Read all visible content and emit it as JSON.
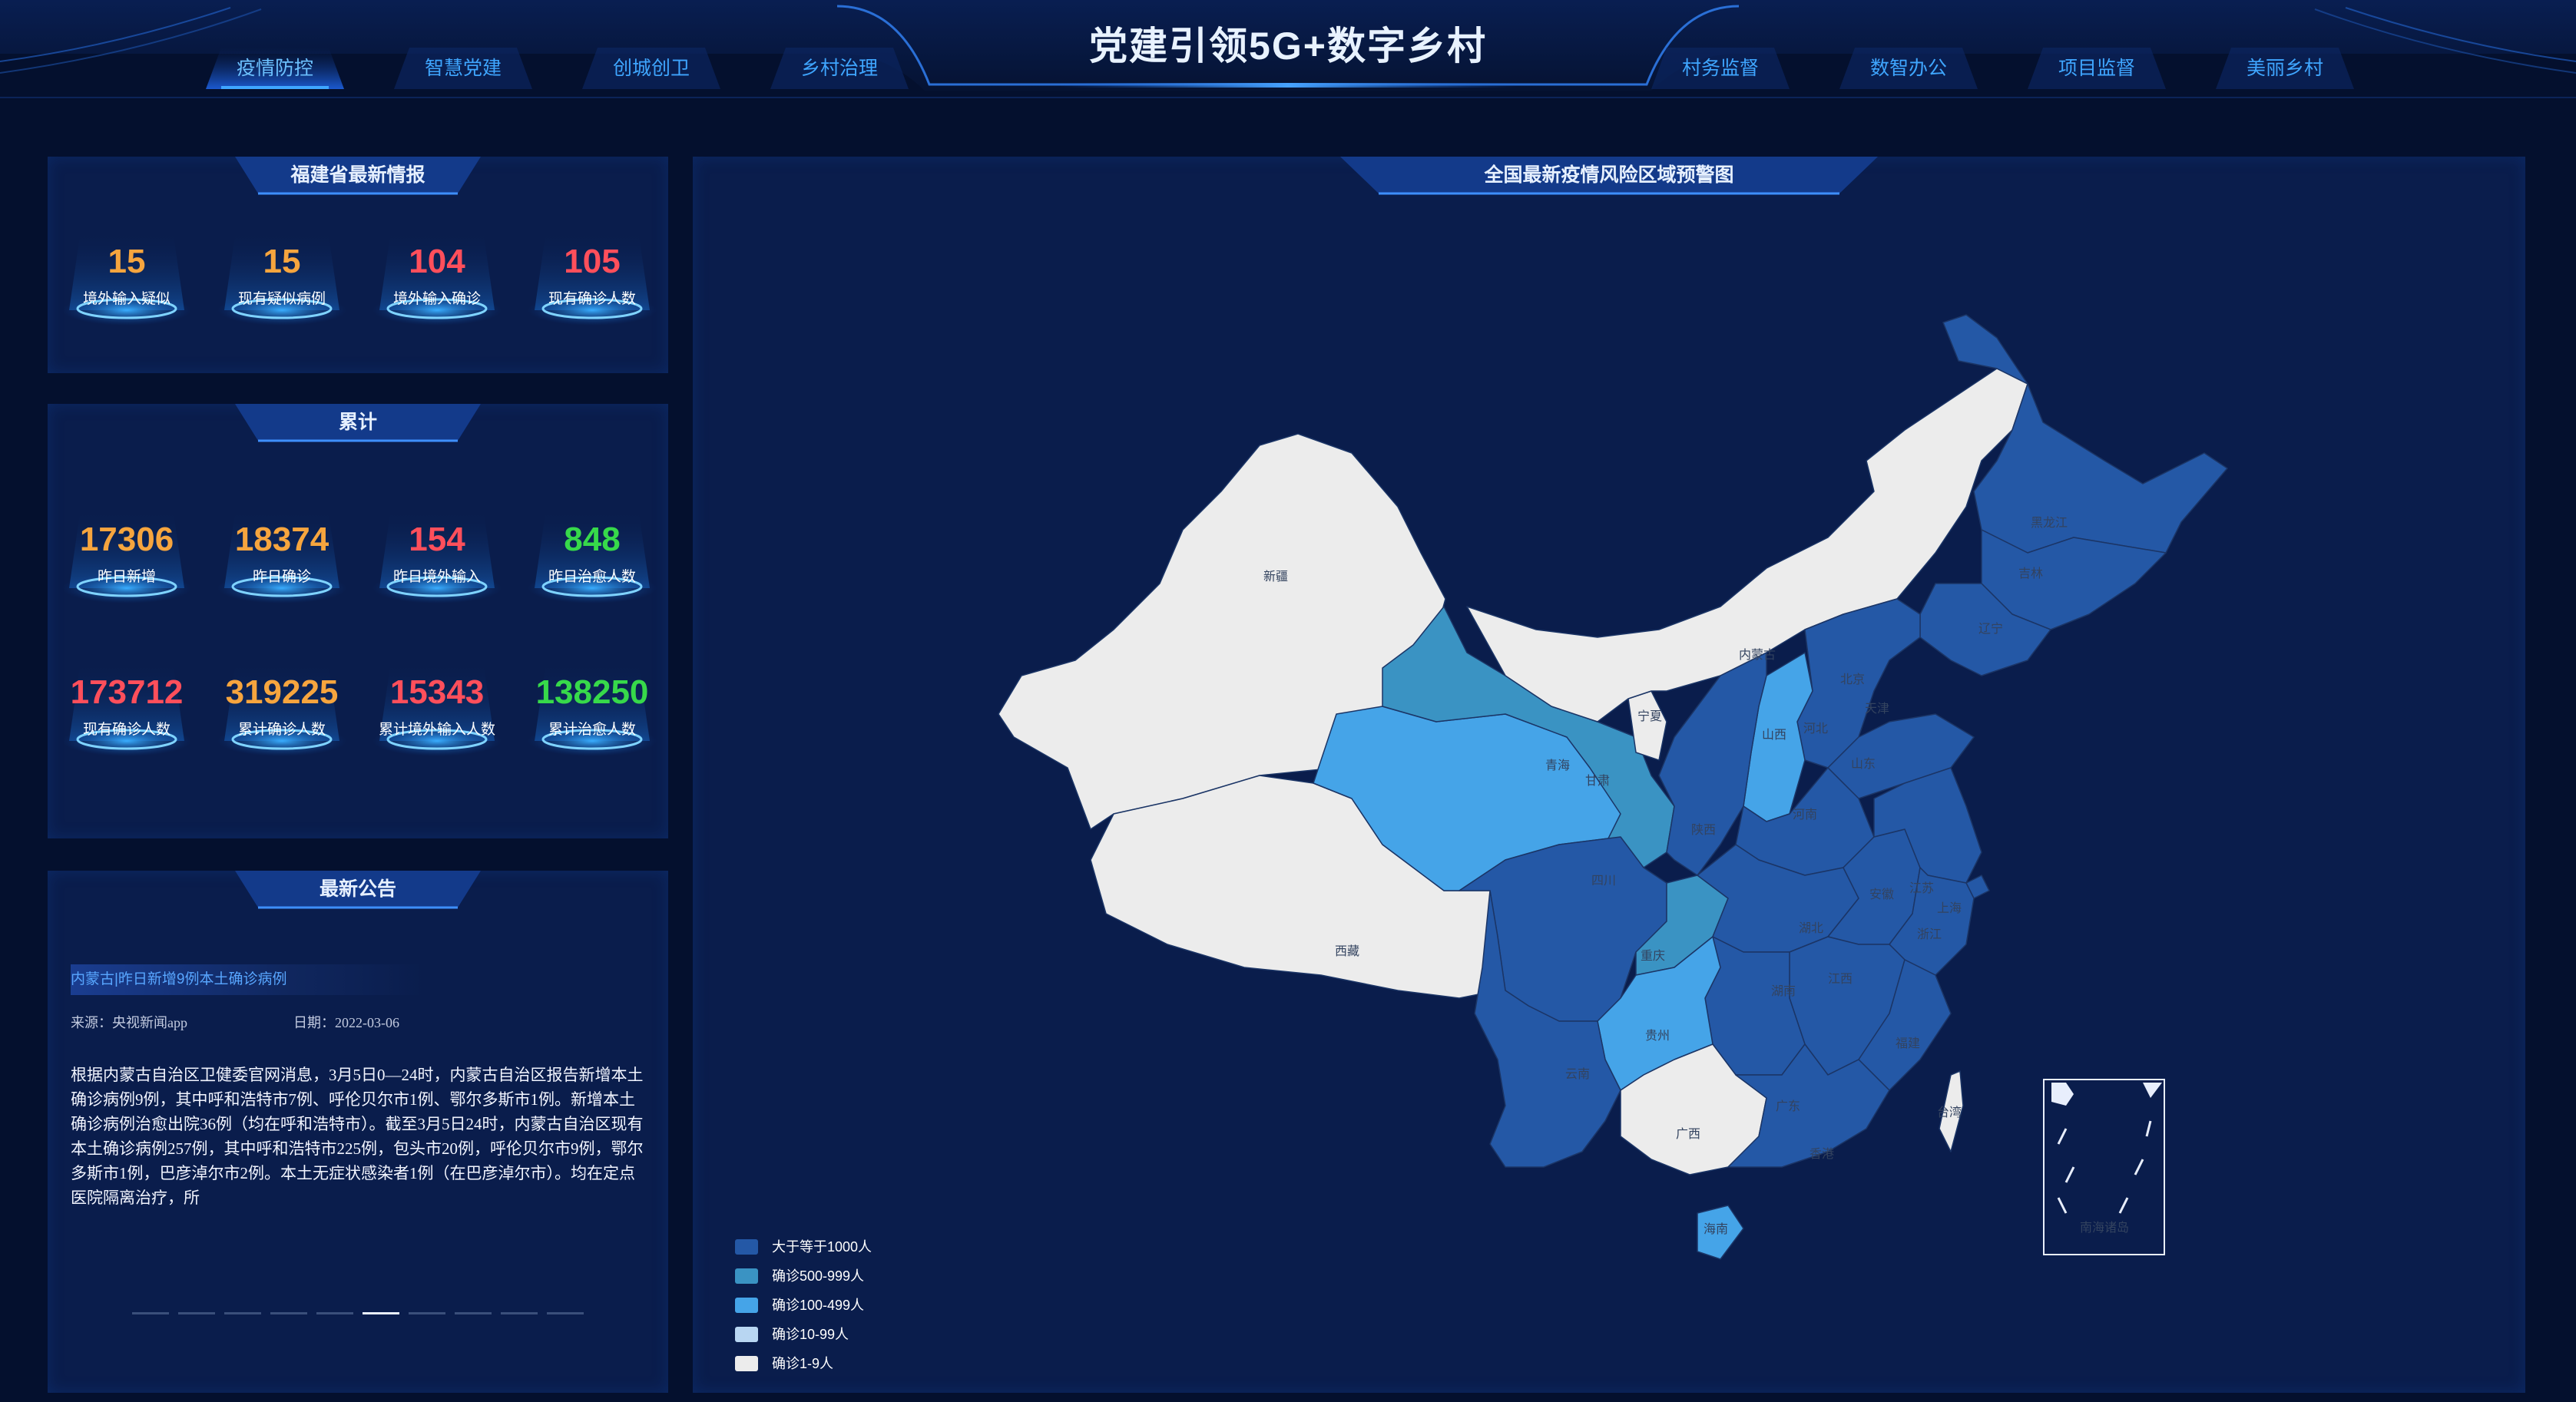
{
  "header": {
    "title": "党建引领5G+数字乡村",
    "nav_left": [
      "疫情防控",
      "智慧党建",
      "创城创卫",
      "乡村治理"
    ],
    "nav_right": [
      "村务监督",
      "数智办公",
      "项目监督",
      "美丽乡村"
    ],
    "active_tab": "疫情防控"
  },
  "latest_info": {
    "title": "福建省最新情报",
    "stats": [
      {
        "value": "15",
        "label": "境外输入疑似",
        "color": "#f6a53e"
      },
      {
        "value": "15",
        "label": "现有疑似病例",
        "color": "#f6a53e"
      },
      {
        "value": "104",
        "label": "境外输入确诊",
        "color": "#ff4f5b"
      },
      {
        "value": "105",
        "label": "现有确诊人数",
        "color": "#ff4f5b"
      }
    ]
  },
  "cumulative": {
    "title": "累计",
    "row1": [
      {
        "value": "17306",
        "label": "昨日新增",
        "color": "#f6a53e"
      },
      {
        "value": "18374",
        "label": "昨日确诊",
        "color": "#f6a53e"
      },
      {
        "value": "154",
        "label": "昨日境外输入",
        "color": "#ff4f5b"
      },
      {
        "value": "848",
        "label": "昨日治愈人数",
        "color": "#37d94a"
      }
    ],
    "row2": [
      {
        "value": "173712",
        "label": "现有确诊人数",
        "color": "#ff4f5b"
      },
      {
        "value": "319225",
        "label": "累计确诊人数",
        "color": "#f6a53e"
      },
      {
        "value": "15343",
        "label": "累计境外输入人数",
        "color": "#ff4f5b"
      },
      {
        "value": "138250",
        "label": "累计治愈人数",
        "color": "#37d94a"
      }
    ]
  },
  "announcement": {
    "title": "最新公告",
    "headline": "内蒙古|昨日新增9例本土确诊病例",
    "source": "来源：央视新闻app",
    "date": "日期：2022-03-06",
    "body": "根据内蒙古自治区卫健委官网消息，3月5日0—24时，内蒙古自治区报告新增本土确诊病例9例，其中呼和浩特市7例、呼伦贝尔市1例、鄂尔多斯市1例。新增本土确诊病例治愈出院36例（均在呼和浩特市）。截至3月5日24时，内蒙古自治区现有本土确诊病例257例，其中呼和浩特市225例，包头市20例，呼伦贝尔市9例，鄂尔多斯市1例，巴彦淖尔市2例。本土无症状感染者1例（在巴彦淖尔市）。均在定点医院隔离治疗，所",
    "pages": 10,
    "current_page": 6
  },
  "map": {
    "title": "全国最新疫情风险区域预警图",
    "colors": {
      "c1000": "#2458a6",
      "c500": "#3a93c3",
      "c100": "#45a4e8",
      "c10": "#b8d6f2",
      "c1": "#ececec"
    },
    "provinces": [
      "新疆",
      "西藏",
      "青海",
      "甘肃",
      "宁夏",
      "内蒙古",
      "黑龙江",
      "吉林",
      "辽宁",
      "北京",
      "天津",
      "河北",
      "山西",
      "山东",
      "河南",
      "陕西",
      "四川",
      "重庆",
      "湖北",
      "安徽",
      "江苏",
      "上海",
      "浙江",
      "江西",
      "湖南",
      "贵州",
      "云南",
      "广西",
      "广东",
      "福建",
      "台湾",
      "海南",
      "香港",
      "南海诸岛"
    ],
    "legend": [
      {
        "label": "大于等于1000人",
        "color": "#2458a6"
      },
      {
        "label": "确诊500-999人",
        "color": "#3a93c3"
      },
      {
        "label": "确诊100-499人",
        "color": "#45a4e8"
      },
      {
        "label": "确诊10-99人",
        "color": "#b8d6f2"
      },
      {
        "label": "确诊1-9人",
        "color": "#ececec"
      }
    ]
  }
}
